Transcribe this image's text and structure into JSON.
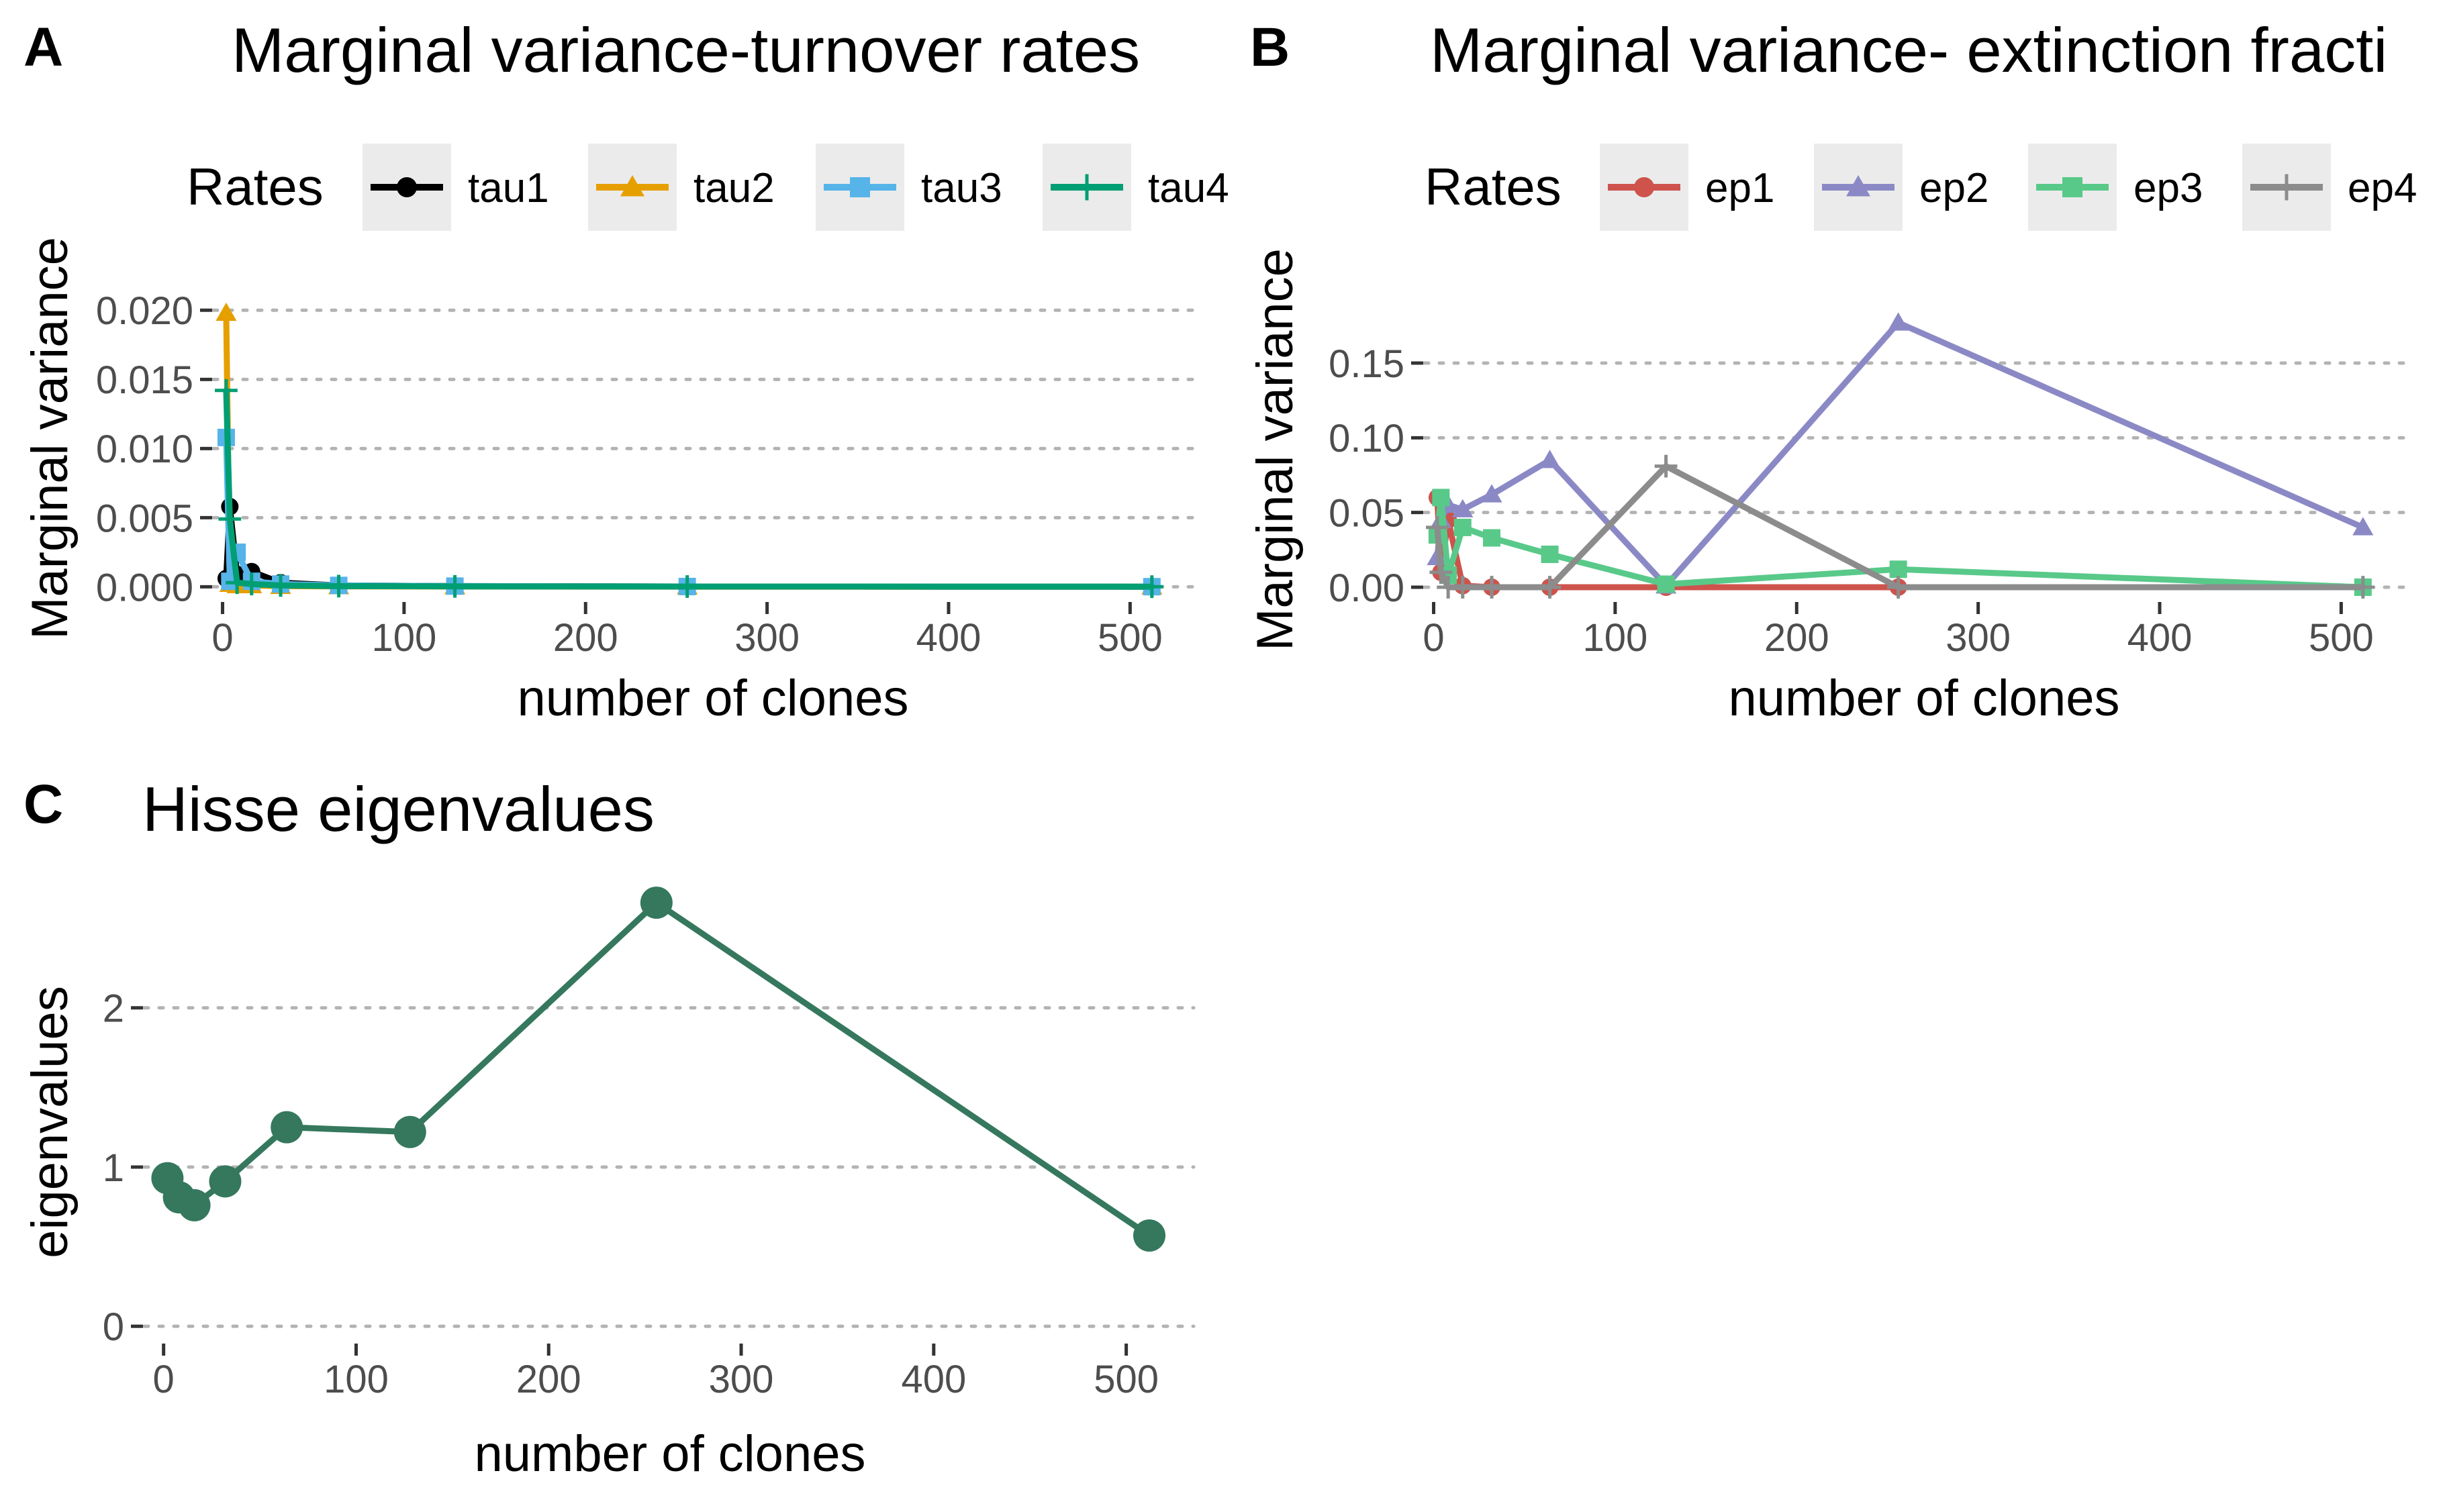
{
  "chart_data": [
    {
      "panel": "A",
      "type": "line",
      "title": "Marginal variance-turnover rates",
      "xlabel": "number of clones",
      "ylabel": "Marginal variance",
      "legend_title": "Rates",
      "legend_position": "top",
      "xlim": [
        -5,
        535
      ],
      "ylim": [
        -0.001,
        0.0205
      ],
      "x_ticks": [
        0,
        100,
        200,
        300,
        400,
        500
      ],
      "y_ticks": [
        0,
        0.005,
        0.01,
        0.015,
        0.02
      ],
      "y_tick_labels": [
        "0.000",
        "0.005",
        "0.010",
        "0.015",
        "0.020"
      ],
      "grid": "horizontal dotted",
      "x": [
        2,
        4,
        8,
        16,
        32,
        64,
        128,
        256,
        512
      ],
      "series": [
        {
          "name": "tau1",
          "color": "#000000",
          "marker": "circle",
          "values": [
            0.0006,
            0.0058,
            0.0009,
            0.0011,
            0.0003,
            0.0001,
            5e-05,
            2e-05,
            1e-05
          ]
        },
        {
          "name": "tau2",
          "color": "#E69F00",
          "marker": "triangle",
          "values": [
            0.0198,
            0.0002,
            0.0001,
            0.0001,
            5e-05,
            3e-05,
            2e-05,
            1e-05,
            1e-05
          ]
        },
        {
          "name": "tau3",
          "color": "#56B4E9",
          "marker": "square",
          "values": [
            0.0108,
            0.0004,
            0.0025,
            0.0004,
            0.0002,
            0.0001,
            5e-05,
            2e-05,
            1e-05
          ]
        },
        {
          "name": "tau4",
          "color": "#009E73",
          "marker": "plus",
          "values": [
            0.0142,
            0.0049,
            0.0003,
            0.0002,
            0.0001,
            5e-05,
            3e-05,
            2e-05,
            1e-05
          ]
        }
      ]
    },
    {
      "panel": "B",
      "type": "line",
      "title": "Marginal variance- extinction fracti",
      "xlabel": "number of clones",
      "ylabel": "Marginal variance",
      "legend_title": "Rates",
      "legend_position": "top",
      "xlim": [
        -5,
        535
      ],
      "ylim": [
        -0.009,
        0.19
      ],
      "x_ticks": [
        0,
        100,
        200,
        300,
        400,
        500
      ],
      "y_ticks": [
        0,
        0.05,
        0.1,
        0.15
      ],
      "y_tick_labels": [
        "0.00",
        "0.05",
        "0.10",
        "0.15"
      ],
      "grid": "horizontal dotted",
      "x": [
        2,
        4,
        8,
        16,
        32,
        64,
        128,
        256,
        512
      ],
      "series": [
        {
          "name": "ep1",
          "color": "#CD534C",
          "marker": "circle",
          "values": [
            0.06,
            0.01,
            0.045,
            0.001,
            0.0,
            0.0,
            0.0,
            0.0,
            0.0
          ]
        },
        {
          "name": "ep2",
          "color": "#8B89C5",
          "marker": "triangle",
          "values": [
            0.02,
            0.045,
            0.055,
            0.052,
            0.062,
            0.085,
            0.001,
            0.177,
            0.04
          ]
        },
        {
          "name": "ep3",
          "color": "#59C98A",
          "marker": "square",
          "values": [
            0.035,
            0.06,
            0.008,
            0.04,
            0.033,
            0.022,
            0.002,
            0.012,
            0.0
          ]
        },
        {
          "name": "ep4",
          "color": "#8C8C8C",
          "marker": "plus",
          "values": [
            0.04,
            0.01,
            0.0,
            0.0,
            0.0,
            0.0,
            0.081,
            0.0,
            0.0
          ]
        }
      ]
    },
    {
      "panel": "C",
      "type": "line",
      "title": "Hisse eigenvalues",
      "xlabel": "number of clones",
      "ylabel": "eigenvalues",
      "xlim": [
        -10,
        535
      ],
      "ylim": [
        -0.1,
        2.85
      ],
      "x_ticks": [
        0,
        100,
        200,
        300,
        400,
        500
      ],
      "y_ticks": [
        0,
        1,
        2
      ],
      "y_tick_labels": [
        "0",
        "1",
        "2"
      ],
      "grid": "horizontal dotted",
      "x": [
        2,
        8,
        16,
        32,
        64,
        128,
        256,
        512
      ],
      "series": [
        {
          "color": "#35785E",
          "marker": "circle",
          "values": [
            0.93,
            0.81,
            0.76,
            0.91,
            1.25,
            1.22,
            2.66,
            0.57
          ]
        }
      ]
    }
  ]
}
